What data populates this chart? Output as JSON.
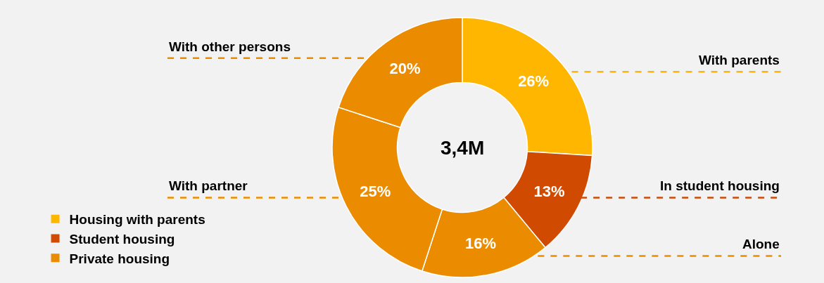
{
  "chart_data": {
    "type": "donut",
    "categories": [
      "With parents",
      "In student housing",
      "Alone",
      "With partner",
      "With other persons"
    ],
    "values": [
      26,
      13,
      16,
      25,
      20
    ],
    "colors": [
      "#ffb600",
      "#d04a02",
      "#eb8c00",
      "#eb8c00",
      "#eb8c00"
    ],
    "value_labels": [
      "26%",
      "13%",
      "16%",
      "25%",
      "20%"
    ],
    "annotations": [
      "3,4M",
      "Housing with parents",
      "Student housing",
      "Private housing"
    ]
  }
}
